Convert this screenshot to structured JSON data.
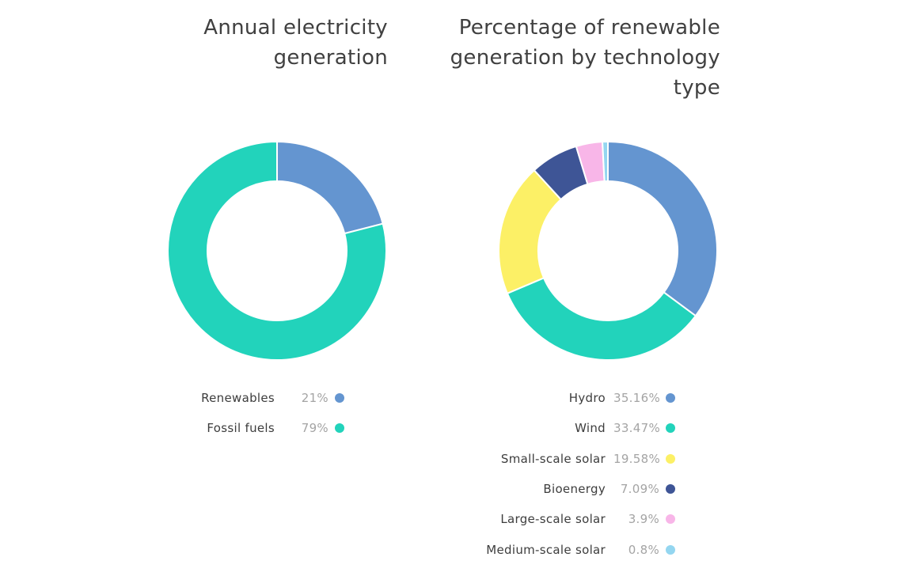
{
  "chart_data": [
    {
      "type": "pie",
      "title": "Annual electricity generation",
      "categories": [
        "Renewables",
        "Fossil fuels"
      ],
      "values": [
        21,
        79
      ],
      "value_labels": [
        "21%",
        "79%"
      ],
      "colors": [
        "#6495d0",
        "#22d3bb"
      ],
      "donut": true,
      "legend_position": "bottom"
    },
    {
      "type": "pie",
      "title": "Percentage of renewable generation by technology type",
      "categories": [
        "Hydro",
        "Wind",
        "Small-scale solar",
        "Bioenergy",
        "Large-scale solar",
        "Medium-scale solar"
      ],
      "values": [
        35.16,
        33.47,
        19.58,
        7.09,
        3.9,
        0.8
      ],
      "value_labels": [
        "35.16%",
        "33.47%",
        "19.58%",
        "7.09%",
        "3.9%",
        "0.8%"
      ],
      "colors": [
        "#6495d0",
        "#22d3bb",
        "#fcf066",
        "#3e5596",
        "#f8b6e8",
        "#94d6f0"
      ],
      "donut": true,
      "legend_position": "bottom"
    }
  ]
}
